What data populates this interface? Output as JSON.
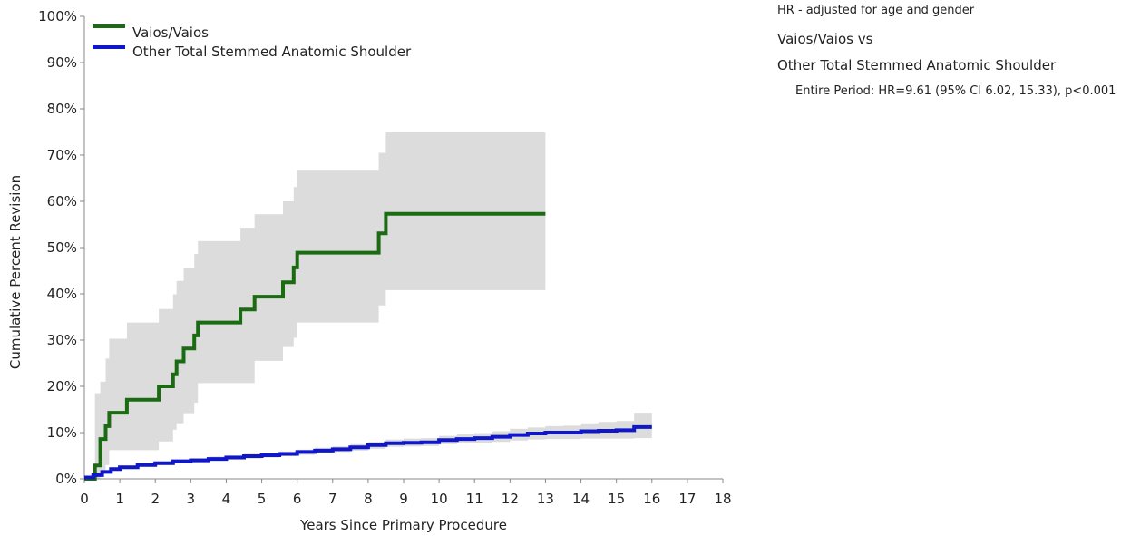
{
  "chart_data": {
    "type": "line",
    "xlabel": "Years Since Primary Procedure",
    "ylabel": "Cumulative Percent Revision",
    "xlim": [
      0,
      18
    ],
    "ylim": [
      0,
      100
    ],
    "x_ticks": [
      "0",
      "1",
      "2",
      "3",
      "4",
      "5",
      "6",
      "7",
      "8",
      "9",
      "10",
      "11",
      "12",
      "13",
      "14",
      "15",
      "16",
      "17",
      "18"
    ],
    "y_ticks": [
      "0%",
      "10%",
      "20%",
      "30%",
      "40%",
      "50%",
      "60%",
      "70%",
      "80%",
      "90%",
      "100%"
    ],
    "legend_position": "top-left",
    "grid": false,
    "series": [
      {
        "name": "Vaios/Vaios",
        "color": "#1a6b12",
        "step": true,
        "x": [
          0,
          0.3,
          0.45,
          0.6,
          0.7,
          1.2,
          2.1,
          2.5,
          2.6,
          2.8,
          3.1,
          3.2,
          4.4,
          4.8,
          5.6,
          5.9,
          6.0,
          8.3,
          8.5,
          13.0
        ],
        "y": [
          0,
          2.9,
          8.6,
          11.4,
          14.3,
          17.1,
          20.0,
          22.6,
          25.4,
          28.2,
          31.0,
          33.8,
          36.6,
          39.4,
          42.5,
          45.7,
          48.9,
          53.1,
          57.3,
          57.3
        ],
        "ci_lower": [
          0,
          0,
          1.5,
          3.0,
          6.2,
          6.2,
          8.1,
          10.6,
          12.0,
          14.2,
          16.5,
          20.7,
          20.7,
          25.5,
          28.5,
          30.5,
          33.8,
          37.5,
          40.8,
          40.8
        ],
        "ci_upper": [
          0,
          18.5,
          21.0,
          26.0,
          30.3,
          33.8,
          36.7,
          39.9,
          42.8,
          45.5,
          48.6,
          51.4,
          54.3,
          57.2,
          60.0,
          63.1,
          66.8,
          70.5,
          74.9,
          74.9
        ]
      },
      {
        "name": "Other Total Stemmed Anatomic Shoulder",
        "color": "#0f17c8",
        "step": true,
        "x": [
          0,
          0.25,
          0.5,
          0.75,
          1,
          1.5,
          2,
          2.5,
          3,
          3.5,
          4,
          4.5,
          5,
          5.5,
          6,
          6.5,
          7,
          7.5,
          8,
          8.5,
          9,
          9.5,
          10,
          10.5,
          11,
          11.5,
          12,
          12.5,
          13,
          13.5,
          14,
          14.5,
          15,
          15.5,
          16
        ],
        "y": [
          0.3,
          0.8,
          1.5,
          2.1,
          2.5,
          3.0,
          3.4,
          3.8,
          4.0,
          4.3,
          4.6,
          4.9,
          5.1,
          5.4,
          5.8,
          6.1,
          6.4,
          6.8,
          7.3,
          7.7,
          7.8,
          7.9,
          8.4,
          8.6,
          8.8,
          9.1,
          9.5,
          9.8,
          10.0,
          10.0,
          10.3,
          10.4,
          10.5,
          11.2,
          11.2
        ],
        "ci_lower": [
          0.2,
          0.6,
          1.2,
          1.8,
          2.2,
          2.6,
          3.0,
          3.4,
          3.6,
          3.9,
          4.2,
          4.4,
          4.6,
          4.9,
          5.2,
          5.5,
          5.8,
          6.1,
          6.5,
          6.9,
          7.0,
          7.1,
          7.5,
          7.7,
          7.8,
          8.0,
          8.3,
          8.5,
          8.6,
          8.6,
          8.7,
          8.7,
          8.7,
          8.8,
          8.8
        ],
        "ci_upper": [
          0.5,
          1.1,
          1.9,
          2.5,
          2.9,
          3.4,
          3.8,
          4.2,
          4.5,
          4.8,
          5.1,
          5.4,
          5.6,
          5.9,
          6.3,
          6.7,
          7.0,
          7.5,
          8.0,
          8.5,
          8.7,
          8.8,
          9.3,
          9.6,
          9.9,
          10.3,
          10.8,
          11.1,
          11.4,
          11.5,
          12.0,
          12.3,
          12.5,
          14.3,
          14.3
        ]
      }
    ],
    "ci_color": "#dcdcdc"
  },
  "notes": {
    "hr_title": "HR - adjusted for age and gender",
    "comparison_line1": "Vaios/Vaios vs",
    "comparison_line2": "Other Total Stemmed Anatomic Shoulder",
    "entire_period": "Entire Period: HR=9.61 (95% CI 6.02, 15.33), p<0.001"
  }
}
